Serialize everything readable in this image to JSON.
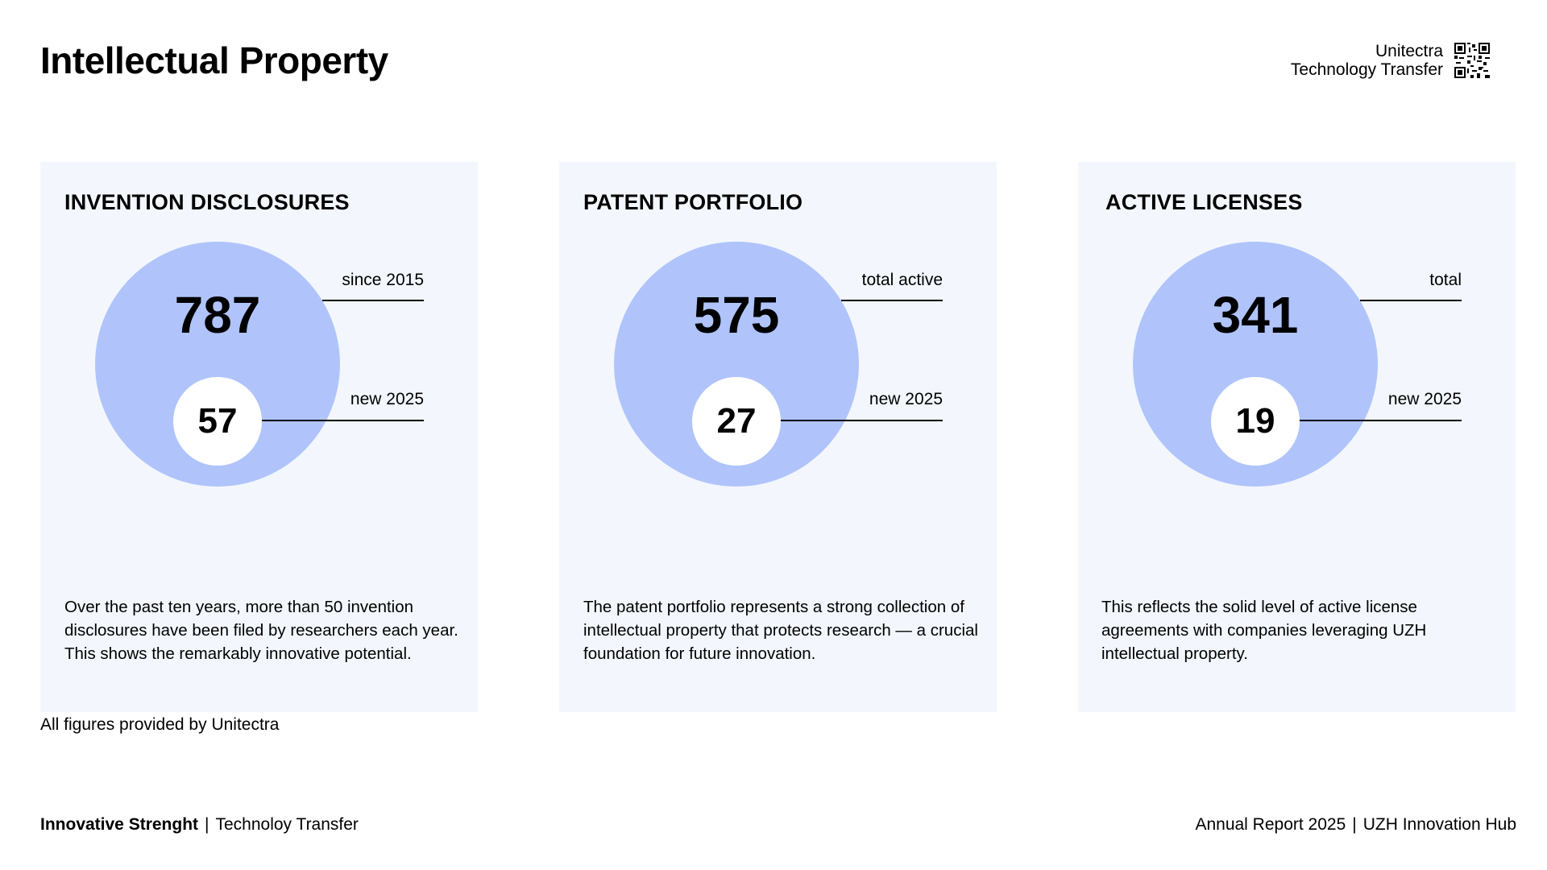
{
  "header": {
    "title": "Intellectual Property",
    "brand_line1": "Unitectra",
    "brand_line2": "Technology Transfer",
    "qr_icon": "qr-code-icon"
  },
  "cards": [
    {
      "title": "INVENTION DISCLOSURES",
      "total_value": "787",
      "total_label": "since 2015",
      "new_value": "57",
      "new_label": "new 2025",
      "description": "Over the past ten years, more than 50 invention disclosures have been filed by researchers each year. This shows the remarkably innovative potential."
    },
    {
      "title": "PATENT PORTFOLIO",
      "total_value": "575",
      "total_label": "total active",
      "new_value": "27",
      "new_label": "new 2025",
      "description": "The patent portfolio represents a strong collection of intellectual property that protects research — a crucial foundation for future innovation."
    },
    {
      "title": "ACTIVE LICENSES",
      "total_value": "341",
      "total_label": "total",
      "new_value": "19",
      "new_label": "new 2025",
      "description": "This reflects the solid level of active license agreements with companies leveraging UZH intellectual property."
    }
  ],
  "source_note": "All figures provided by Unitectra",
  "footer": {
    "left_strong": "Innovative Strenght",
    "separator": "|",
    "left_rest": "Technoloy Transfer",
    "right_part1": "Annual Report 2025",
    "right_part2": "UZH Innovation Hub"
  },
  "colors": {
    "card_background": "#f3f7fd",
    "circle_fill": "#b0c4fb",
    "inner_circle": "#ffffff",
    "text": "#000000"
  }
}
